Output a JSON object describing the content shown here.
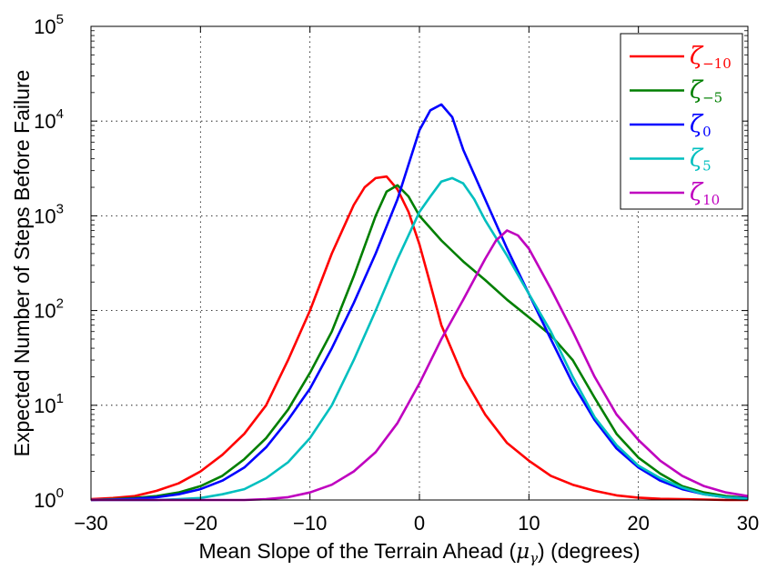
{
  "chart_data": {
    "type": "line",
    "xlabel": "Mean Slope of the Terrain Ahead (",
    "xlabel_mu": "μ",
    "xlabel_gamma": "γ",
    "xlabel_tail": ") (degrees)",
    "ylabel": "Expected Number of Steps Before Failure",
    "xlim": [
      -30,
      30
    ],
    "ylim": [
      1,
      100000
    ],
    "yscale": "log",
    "grid": true,
    "legend_position": "top-right",
    "x_ticks": [
      -30,
      -20,
      -10,
      0,
      10,
      20,
      30
    ],
    "x_tick_labels": [
      "−30",
      "−20",
      "−10",
      "0",
      "10",
      "20",
      "30"
    ],
    "y_ticks": [
      1,
      10,
      100,
      1000,
      10000,
      100000
    ],
    "y_tick_base": "10",
    "y_tick_exponents": [
      "0",
      "1",
      "2",
      "3",
      "4",
      "5"
    ],
    "series": [
      {
        "name": "ζ−10",
        "symbol": "ζ",
        "subscript": "−10",
        "color": "#ff0000",
        "x": [
          -30,
          -28,
          -26,
          -24,
          -22,
          -20,
          -18,
          -16,
          -14,
          -12,
          -10,
          -8,
          -6,
          -5,
          -4,
          -3,
          -2,
          -1,
          0,
          1,
          2,
          4,
          6,
          8,
          10,
          12,
          14,
          16,
          18,
          20,
          22,
          24,
          26,
          28,
          30
        ],
        "y": [
          1.02,
          1.05,
          1.1,
          1.25,
          1.5,
          2,
          3,
          5,
          10,
          30,
          100,
          400,
          1300,
          2000,
          2500,
          2600,
          1900,
          1100,
          500,
          190,
          70,
          20,
          8,
          4,
          2.6,
          1.8,
          1.45,
          1.25,
          1.12,
          1.06,
          1.03,
          1.02,
          1.01,
          1.0,
          1.0
        ]
      },
      {
        "name": "ζ−5",
        "symbol": "ζ",
        "subscript": "−5",
        "color": "#007f00",
        "x": [
          -30,
          -28,
          -26,
          -24,
          -22,
          -20,
          -18,
          -16,
          -14,
          -12,
          -10,
          -8,
          -6,
          -4,
          -3,
          -2,
          -1,
          0,
          2,
          4,
          6,
          8,
          10,
          12,
          14,
          16,
          18,
          20,
          22,
          24,
          26,
          28,
          30
        ],
        "y": [
          1,
          1.02,
          1.05,
          1.1,
          1.2,
          1.4,
          1.8,
          2.7,
          4.5,
          9,
          22,
          60,
          230,
          1000,
          1800,
          2100,
          1600,
          1000,
          550,
          330,
          210,
          130,
          85,
          55,
          30,
          12,
          5,
          2.8,
          1.9,
          1.4,
          1.2,
          1.1,
          1.05
        ]
      },
      {
        "name": "ζ0",
        "symbol": "ζ",
        "subscript": "0",
        "color": "#0000ff",
        "x": [
          -30,
          -28,
          -26,
          -24,
          -22,
          -20,
          -18,
          -16,
          -14,
          -12,
          -10,
          -8,
          -6,
          -4,
          -2,
          0,
          1,
          2,
          3,
          4,
          6,
          8,
          10,
          12,
          14,
          16,
          18,
          20,
          22,
          24,
          26,
          28,
          30
        ],
        "y": [
          1,
          1.01,
          1.03,
          1.07,
          1.15,
          1.3,
          1.6,
          2.2,
          3.6,
          7,
          15,
          40,
          120,
          400,
          1500,
          8000,
          13000,
          15000,
          11000,
          5000,
          1500,
          450,
          150,
          50,
          17,
          7,
          3.5,
          2.2,
          1.6,
          1.3,
          1.15,
          1.07,
          1.04
        ]
      },
      {
        "name": "ζ5",
        "symbol": "ζ",
        "subscript": "5",
        "color": "#00bfbf",
        "x": [
          -30,
          -28,
          -26,
          -24,
          -22,
          -20,
          -18,
          -16,
          -14,
          -12,
          -10,
          -8,
          -6,
          -4,
          -2,
          0,
          1,
          2,
          3,
          4,
          5,
          6,
          8,
          10,
          12,
          14,
          16,
          18,
          20,
          22,
          24,
          26,
          28,
          30
        ],
        "y": [
          1,
          1,
          1,
          1,
          1.02,
          1.05,
          1.15,
          1.3,
          1.7,
          2.5,
          4.5,
          10,
          30,
          100,
          350,
          1100,
          1600,
          2300,
          2500,
          2200,
          1500,
          900,
          380,
          150,
          60,
          20,
          7.5,
          3.8,
          2.3,
          1.7,
          1.35,
          1.15,
          1.07,
          1.03
        ]
      },
      {
        "name": "ζ10",
        "symbol": "ζ",
        "subscript": "10",
        "color": "#bf00bf",
        "x": [
          -30,
          -28,
          -26,
          -24,
          -22,
          -20,
          -18,
          -16,
          -14,
          -12,
          -10,
          -8,
          -6,
          -4,
          -2,
          0,
          2,
          4,
          6,
          7,
          8,
          9,
          10,
          12,
          14,
          16,
          18,
          20,
          22,
          24,
          26,
          28,
          30
        ],
        "y": [
          1,
          1,
          1,
          1,
          1,
          1,
          1,
          1,
          1.02,
          1.07,
          1.2,
          1.45,
          2,
          3.2,
          6.5,
          17,
          50,
          130,
          350,
          550,
          700,
          620,
          450,
          170,
          60,
          20,
          8,
          4.3,
          2.6,
          1.8,
          1.4,
          1.2,
          1.1
        ]
      }
    ]
  }
}
